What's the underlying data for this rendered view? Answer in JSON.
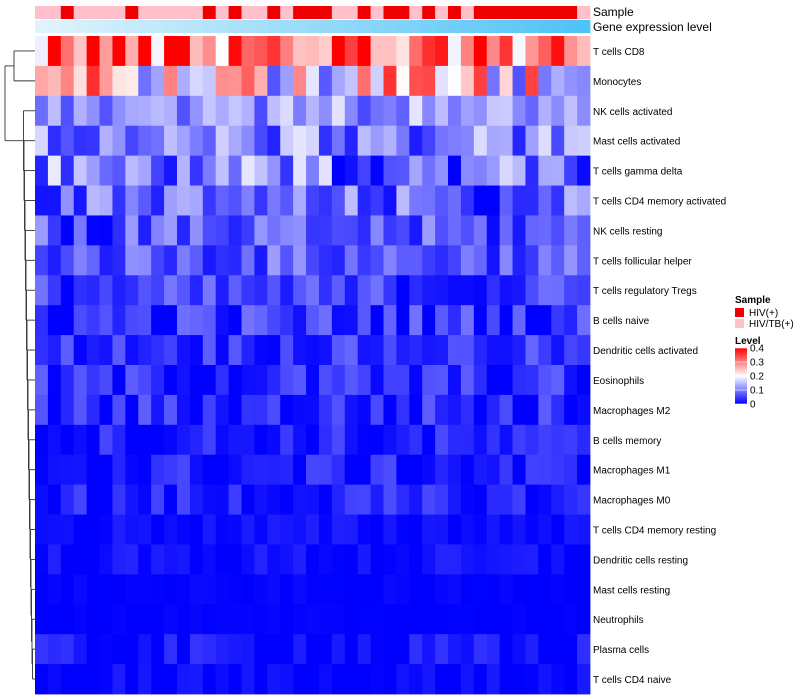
{
  "chart_data": {
    "type": "heatmap",
    "annotation_tracks": [
      "Sample",
      "Gene expression level"
    ],
    "rows": [
      "T cells CD8",
      "Monocytes",
      "NK cells activated",
      "Mast cells activated",
      "T cells gamma delta",
      "T cells CD4 memory activated",
      "NK cells resting",
      "T cells follicular helper",
      "T cells regulatory  Tregs",
      "B cells naive",
      "Dendritic cells activated",
      "Eosinophils",
      "Macrophages M2",
      "B cells memory",
      "Macrophages M1",
      "Macrophages M0",
      "T cells CD4 memory resting",
      "Dendritic cells resting",
      "Mast cells resting",
      "Neutrophils",
      "Plasma cells",
      "T cells CD4 naive"
    ],
    "n_samples": 43,
    "row_means": [
      0.33,
      0.22,
      0.12,
      0.1,
      0.09,
      0.07,
      0.06,
      0.07,
      0.04,
      0.04,
      0.04,
      0.03,
      0.03,
      0.02,
      0.02,
      0.02,
      0.01,
      0.01,
      0.0,
      0.0,
      0.01,
      0.0
    ],
    "row_spread": [
      0.09,
      0.1,
      0.04,
      0.05,
      0.06,
      0.05,
      0.04,
      0.035,
      0.035,
      0.035,
      0.025,
      0.03,
      0.03,
      0.025,
      0.025,
      0.025,
      0.01,
      0.012,
      0.005,
      0.003,
      0.02,
      0.015
    ],
    "sample_groups": [
      "HIV/TB(+)",
      "HIV/TB(+)",
      "HIV(+)",
      "HIV/TB(+)",
      "HIV/TB(+)",
      "HIV/TB(+)",
      "HIV/TB(+)",
      "HIV(+)",
      "HIV/TB(+)",
      "HIV/TB(+)",
      "HIV/TB(+)",
      "HIV/TB(+)",
      "HIV/TB(+)",
      "HIV(+)",
      "HIV/TB(+)",
      "HIV(+)",
      "HIV/TB(+)",
      "HIV/TB(+)",
      "HIV(+)",
      "HIV/TB(+)",
      "HIV(+)",
      "HIV(+)",
      "HIV(+)",
      "HIV/TB(+)",
      "HIV/TB(+)",
      "HIV(+)",
      "HIV/TB(+)",
      "HIV(+)",
      "HIV(+)",
      "HIV/TB(+)",
      "HIV(+)",
      "HIV/TB(+)",
      "HIV(+)",
      "HIV/TB(+)",
      "HIV(+)",
      "HIV(+)",
      "HIV(+)",
      "HIV(+)",
      "HIV(+)",
      "HIV(+)",
      "HIV(+)",
      "HIV(+)",
      "HIV/TB(+)"
    ],
    "legend": {
      "sample": {
        "title": "Sample",
        "items": [
          {
            "label": "HIV(+)",
            "color": "#ee0000"
          },
          {
            "label": "HIV/TB(+)",
            "color": "#ffc0cb"
          }
        ]
      },
      "level": {
        "title": "Level",
        "ticks": [
          "0.4",
          "0.3",
          "0.2",
          "0.1",
          "0"
        ],
        "tick_values": [
          0.4,
          0.3,
          0.2,
          0.1,
          0
        ],
        "range": [
          0,
          0.4
        ]
      }
    },
    "colors": {
      "low": "#0000ff",
      "mid": "#ffffff",
      "high": "#ff0000",
      "expr_track_start": "#e0f3fa",
      "expr_track_end": "#4fc3f7"
    }
  }
}
